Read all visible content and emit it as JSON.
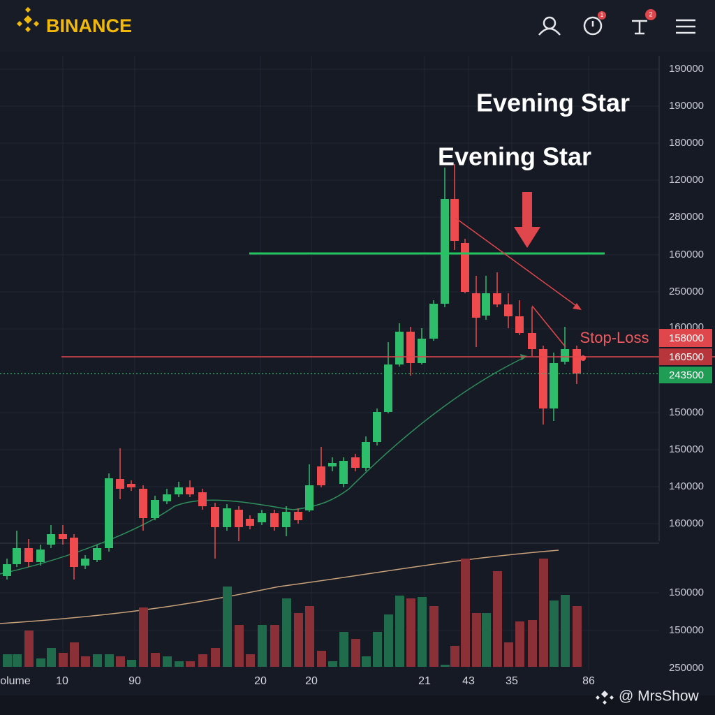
{
  "header": {
    "brand": "BINANCE",
    "badges": [
      "1",
      "2"
    ]
  },
  "annotations": {
    "pattern_main": "Evening Star",
    "pattern_secondary": "Evening Star",
    "stop_loss": "Stop-Loss"
  },
  "price_axis": [
    "190000",
    "190000",
    "180000",
    "120000",
    "280000",
    "160000",
    "250000",
    "160000",
    "150000",
    "150000",
    "140000",
    "160000"
  ],
  "price_tags": [
    "158000",
    "160500",
    "243500"
  ],
  "volume_axis": [
    "150000",
    "150000",
    "250000"
  ],
  "x_axis": [
    "olume",
    "10",
    "90",
    "20",
    "20",
    "21",
    "43",
    "35",
    "86"
  ],
  "watermark": "@ MrsShow"
}
